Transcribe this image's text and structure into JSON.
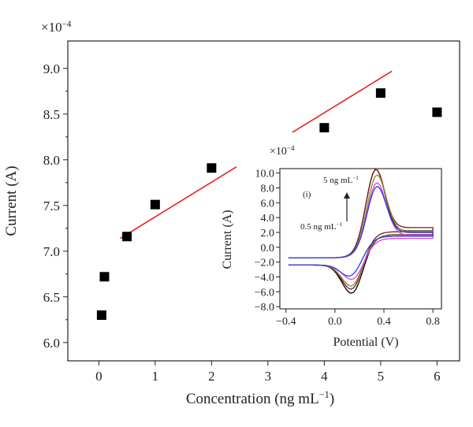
{
  "chart_data": [
    {
      "type": "scatter",
      "xlabel": "Concentration (ng mL−1)",
      "ylabel": "Current (A)",
      "y_multiplier": "×10−4",
      "xlim": [
        -0.55,
        6.4
      ],
      "ylim": [
        5.8,
        9.3
      ],
      "x_ticks": [
        0,
        1,
        2,
        3,
        4,
        5,
        6
      ],
      "y_ticks": [
        6.0,
        6.5,
        7.0,
        7.5,
        8.0,
        8.5,
        9.0
      ],
      "y_tick_labels": [
        "6.0",
        "6.5",
        "7.0",
        "7.5",
        "8.0",
        "8.5",
        "9.0"
      ],
      "series": [
        {
          "marker": "square",
          "color": "#000000",
          "points": [
            {
              "x": 0.05,
              "y": 6.3
            },
            {
              "x": 0.1,
              "y": 6.72
            },
            {
              "x": 0.5,
              "y": 7.16
            },
            {
              "x": 1,
              "y": 7.51
            },
            {
              "x": 2,
              "y": 7.91
            },
            {
              "x": 4,
              "y": 8.35
            },
            {
              "x": 5,
              "y": 8.73
            },
            {
              "x": 6,
              "y": 8.52
            }
          ]
        },
        {
          "type": "line",
          "color": "#e8231f",
          "points": [
            {
              "x": 0.38,
              "y": 7.14
            },
            {
              "x": 5.2,
              "y": 8.97
            }
          ]
        }
      ]
    },
    {
      "type": "line",
      "role": "inset",
      "xlabel": "Potential (V)",
      "ylabel": "Current (A)",
      "y_multiplier": "×10−4",
      "xlim": [
        -0.45,
        0.87
      ],
      "ylim": [
        -8.3,
        10.6
      ],
      "x_ticks": [
        -0.4,
        0.0,
        0.4,
        0.8
      ],
      "x_tick_labels": [
        "−0.4",
        "0.0",
        "0.4",
        "0.8"
      ],
      "y_ticks": [
        -8,
        -6,
        -4,
        -2,
        0,
        2,
        4,
        6,
        8,
        10
      ],
      "y_tick_labels": [
        "−8.0",
        "−6.0",
        "−4.0",
        "−2.0",
        "0.0",
        "2.0",
        "4.0",
        "6.0",
        "8.0",
        "10.0"
      ],
      "annotations": {
        "panel": "(i)",
        "top": "5 ng mL−1",
        "bottom": "0.5 ng mL−1"
      },
      "series": [
        {
          "color": "#000000",
          "ipa": 9.0,
          "ipc": -6.5,
          "pa": 0.33,
          "pc": 0.15,
          "end": 5.0
        },
        {
          "color": "#7b1c1c",
          "ipa": 8.6,
          "ipc": -6.0,
          "pa": 0.33,
          "pc": 0.15,
          "end": 5.8
        },
        {
          "color": "#8a8a2a",
          "ipa": 8.2,
          "ipc": -5.5,
          "pa": 0.34,
          "pc": 0.15,
          "end": 4.9
        },
        {
          "color": "#e83ee8",
          "ipa": 7.6,
          "ipc": -4.6,
          "pa": 0.34,
          "pc": 0.16,
          "end": 4.0
        },
        {
          "color": "#2a3fe0",
          "ipa": 6.8,
          "ipc": -4.0,
          "pa": 0.34,
          "pc": 0.14,
          "end": 4.6
        }
      ]
    }
  ]
}
